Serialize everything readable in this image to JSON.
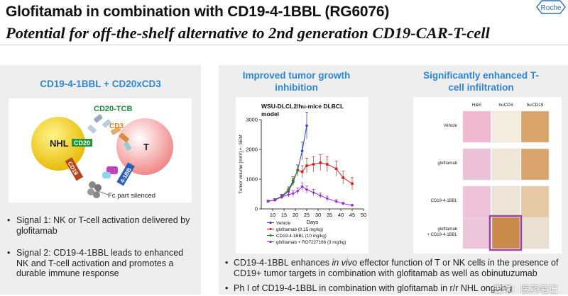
{
  "header": {
    "title": "Glofitamab in combination with CD19-4-1BBL (RG6076)",
    "subtitle": "Potential for off-the-shelf alternative to 2nd generation CD19-CAR-T-cell",
    "logo_text": "Roche"
  },
  "left_panel": {
    "heading": "CD19-4-1BBL + CD20xCD3",
    "diagram": {
      "cd20_tcb_label": "CD20-TCB",
      "cd3_label": "CD3",
      "nhl_label": "NHL",
      "cd20_label": "CD20",
      "t_label": "T",
      "cd19_label": "CD19",
      "bbl_label": "4-1BB",
      "fc_label": "Fc part silenced"
    },
    "bullets": [
      "Signal 1: NK or T-cell activation delivered by glofitamab",
      "Signal 2: CD19-4-1BBL leads to enhanced NK and T-cell activation and promotes a durable immune response"
    ]
  },
  "right_panel": {
    "heading_left": "Improved tumor growth inhibition",
    "heading_right": "Significantly enhanced T-cell infiltration",
    "histology": {
      "columns": [
        "H&E",
        "huCD3",
        "huCD19"
      ],
      "rows": [
        "Vehicle",
        "glofitamab",
        "CD19-4-1BBL",
        "glofitamab\n+ CD19-4-1BBL"
      ]
    },
    "bullets": [
      {
        "pre": "CD19-4-1BBL enhances ",
        "em": "in vivo",
        "post": " effector function of T or NK cells in the presence of CD19+ tumor targets in combination with glofitamab as well as obinutuzumab"
      },
      {
        "pre": "Ph I of CD19-4-1BBL in combination with glofitamab in r/r NHL ongoing",
        "em": "",
        "post": ""
      }
    ],
    "watermark": "雪球：医药笔记"
  },
  "chart_data": {
    "type": "line",
    "title": "WSU-DLCL2/hu-mice DLBCL model",
    "xlabel": "Days",
    "ylabel": "Tumor volume [mm³] +- SEM",
    "xlim": [
      5,
      50
    ],
    "ylim": [
      0,
      3000
    ],
    "xticks": [
      10,
      15,
      20,
      25,
      30,
      35,
      40,
      45,
      50
    ],
    "yticks": [
      0,
      1000,
      2000,
      3000
    ],
    "series": [
      {
        "name": "Vehicle",
        "color": "#2b3fd8",
        "x": [
          8,
          11,
          14,
          17,
          19,
          21,
          23,
          25
        ],
        "y": [
          260,
          300,
          400,
          600,
          900,
          1300,
          1950,
          2800
        ],
        "err": [
          30,
          40,
          60,
          80,
          120,
          180,
          300,
          450
        ]
      },
      {
        "name": "glofitamab (0.15 mg/kg)",
        "color": "#e02020",
        "x": [
          8,
          11,
          14,
          17,
          19,
          21,
          23,
          25,
          28,
          31,
          34,
          38,
          41,
          45
        ],
        "y": [
          260,
          300,
          420,
          650,
          950,
          1300,
          1250,
          1450,
          1500,
          1550,
          1500,
          1350,
          1050,
          850
        ],
        "err": [
          30,
          40,
          60,
          90,
          130,
          180,
          200,
          250,
          260,
          270,
          260,
          250,
          220,
          200
        ]
      },
      {
        "name": "CD19-4-1BBL (10 mg/kg)",
        "color": "#2a8a2a",
        "x": [
          8,
          11,
          14,
          17,
          19,
          21
        ],
        "y": [
          260,
          310,
          430,
          650,
          950,
          1300
        ],
        "err": [
          30,
          40,
          60,
          90,
          130,
          180
        ]
      },
      {
        "name": "glofitamab + RO7227166 (3 mg/kg)",
        "color": "#9a2bd8",
        "x": [
          8,
          11,
          14,
          17,
          19,
          21,
          23,
          25,
          28,
          31,
          34,
          38,
          41,
          45
        ],
        "y": [
          260,
          300,
          400,
          480,
          520,
          600,
          750,
          650,
          550,
          450,
          350,
          250,
          180,
          120
        ],
        "err": [
          30,
          40,
          60,
          80,
          90,
          110,
          130,
          120,
          110,
          90,
          80,
          60,
          50,
          40
        ]
      }
    ]
  }
}
